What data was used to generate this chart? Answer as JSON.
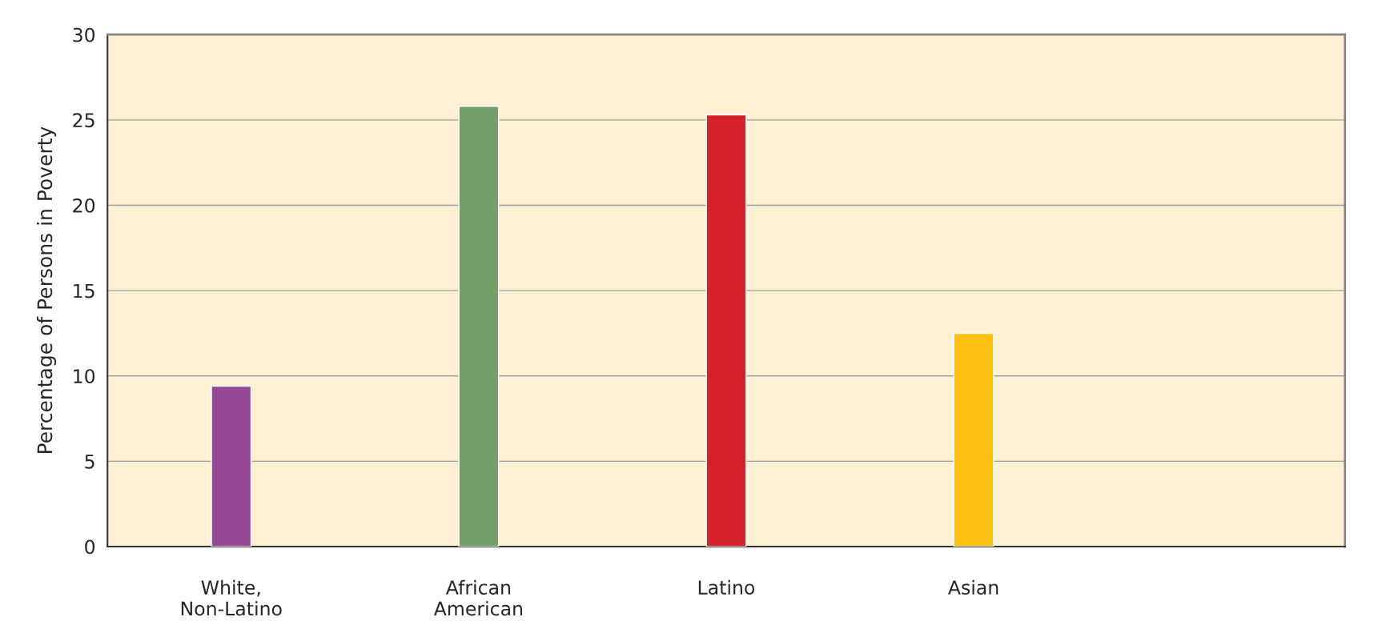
{
  "chart_data": {
    "type": "bar",
    "ylabel": "Percentage of Persons in Poverty",
    "categories": [
      "White,\nNon-Latino",
      "African\nAmerican",
      "Latino",
      "Asian",
      null
    ],
    "values": [
      9.4,
      25.8,
      25.3,
      12.5,
      null
    ],
    "colors": [
      "#944a97",
      "#739f68",
      "#d4212a",
      "#fdc010",
      "#000000"
    ],
    "ylim": [
      0,
      30
    ],
    "yticks": [
      0,
      5,
      10,
      15,
      20,
      25,
      30
    ],
    "grid": "y"
  }
}
